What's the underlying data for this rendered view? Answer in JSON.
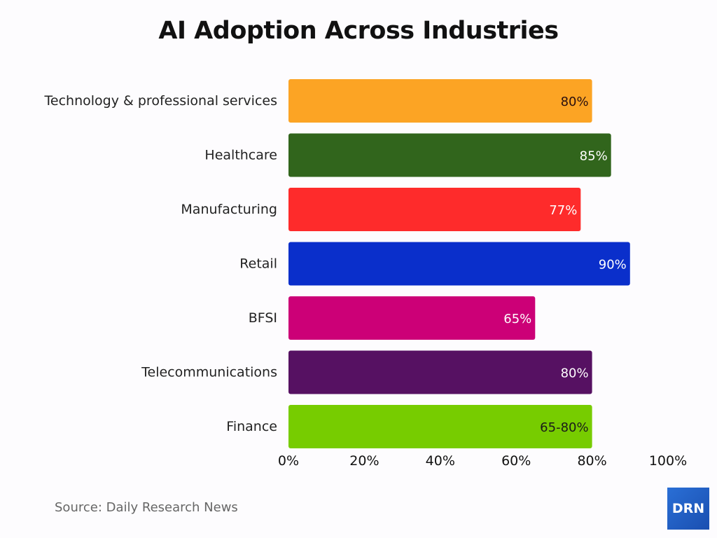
{
  "chart_data": {
    "type": "bar",
    "orientation": "horizontal",
    "title": "AI Adoption Across Industries",
    "categories": [
      "Technology & professional services",
      "Healthcare",
      "Manufacturing",
      "Retail",
      "BFSI",
      "Telecommunications",
      "Finance"
    ],
    "values": [
      80,
      85,
      77,
      90,
      65,
      80,
      80
    ],
    "data_labels": [
      "80%",
      "85%",
      "77%",
      "90%",
      "65%",
      "80%",
      "65-80%"
    ],
    "colors": [
      "#fca424",
      "#31651c",
      "#fe2b2b",
      "#0a2fcb",
      "#cc0077",
      "#561162",
      "#77cc00"
    ],
    "label_colors": [
      "#2a0f0f",
      "#ffffff",
      "#ffffff",
      "#ffffff",
      "#ffffff",
      "#ffffff",
      "#1a1a1a"
    ],
    "xlim": [
      0,
      100
    ],
    "xticks": [
      "0%",
      "20%",
      "40%",
      "60%",
      "80%",
      "100%"
    ],
    "grid": false
  },
  "source": "Source: Daily Research News",
  "logo": "DRN"
}
